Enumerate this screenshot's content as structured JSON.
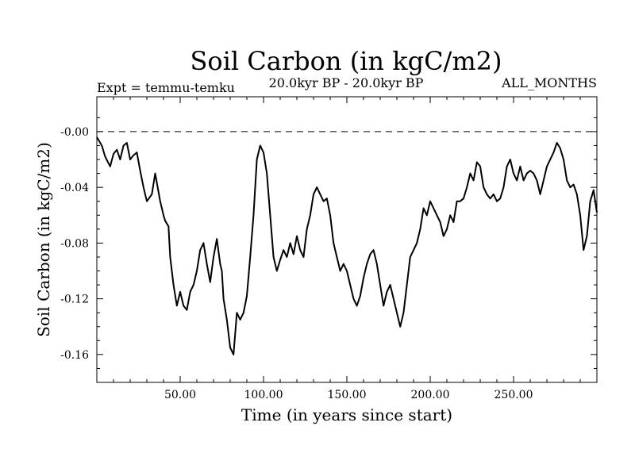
{
  "chart_data": {
    "type": "line",
    "title": "Soil Carbon (in kgC/m2)",
    "subtitle_left": "Expt = temmu-temku",
    "subtitle_center": "20.0kyr BP - 20.0kyr BP",
    "subtitle_right": "ALL_MONTHS",
    "xlabel": "Time (in years since start)",
    "ylabel": "Soil Carbon (in kgC/m2)",
    "xlim": [
      0,
      300
    ],
    "ylim": [
      -0.18,
      0.025
    ],
    "x_ticks": [
      50,
      100,
      150,
      200,
      250
    ],
    "x_tick_labels": [
      "50.00",
      "100.00",
      "150.00",
      "200.00",
      "250.00"
    ],
    "y_ticks": [
      0.0,
      -0.04,
      -0.08,
      -0.12,
      -0.16
    ],
    "y_tick_labels": [
      "-0.00",
      "-0.04",
      "-0.08",
      "-0.12",
      "-0.16"
    ],
    "reference_line": 0.0,
    "grid": false,
    "series": [
      {
        "name": "Soil Carbon",
        "x": [
          0,
          3,
          5,
          8,
          10,
          12,
          14,
          16,
          18,
          20,
          22,
          24,
          26,
          28,
          30,
          33,
          35,
          38,
          40,
          41,
          43,
          44,
          46,
          48,
          50,
          52,
          54,
          56,
          58,
          60,
          62,
          64,
          66,
          68,
          70,
          72,
          74,
          75,
          76,
          78,
          80,
          82,
          84,
          86,
          88,
          90,
          92,
          94,
          95,
          96,
          98,
          100,
          102,
          104,
          106,
          108,
          110,
          112,
          114,
          116,
          118,
          120,
          122,
          124,
          126,
          128,
          130,
          132,
          134,
          136,
          138,
          140,
          142,
          144,
          146,
          148,
          150,
          152,
          154,
          156,
          158,
          160,
          162,
          164,
          166,
          168,
          170,
          172,
          174,
          176,
          178,
          180,
          182,
          184,
          186,
          188,
          190,
          192,
          194,
          196,
          198,
          200,
          202,
          204,
          206,
          208,
          210,
          212,
          214,
          216,
          218,
          220,
          222,
          224,
          226,
          228,
          230,
          232,
          234,
          236,
          238,
          240,
          242,
          244,
          246,
          248,
          250,
          252,
          254,
          256,
          258,
          260,
          262,
          264,
          266,
          268,
          270,
          272,
          274,
          276,
          278,
          280,
          282,
          284,
          286,
          288,
          290,
          292,
          294,
          296,
          298,
          300
        ],
        "y": [
          -0.004,
          -0.01,
          -0.018,
          -0.025,
          -0.016,
          -0.013,
          -0.02,
          -0.01,
          -0.008,
          -0.02,
          -0.017,
          -0.015,
          -0.028,
          -0.04,
          -0.05,
          -0.045,
          -0.03,
          -0.05,
          -0.06,
          -0.064,
          -0.068,
          -0.09,
          -0.11,
          -0.125,
          -0.115,
          -0.125,
          -0.128,
          -0.115,
          -0.11,
          -0.1,
          -0.085,
          -0.08,
          -0.095,
          -0.108,
          -0.09,
          -0.077,
          -0.095,
          -0.1,
          -0.12,
          -0.135,
          -0.155,
          -0.16,
          -0.13,
          -0.135,
          -0.13,
          -0.118,
          -0.09,
          -0.06,
          -0.04,
          -0.02,
          -0.01,
          -0.015,
          -0.03,
          -0.06,
          -0.09,
          -0.1,
          -0.092,
          -0.085,
          -0.09,
          -0.08,
          -0.088,
          -0.075,
          -0.085,
          -0.09,
          -0.07,
          -0.06,
          -0.045,
          -0.04,
          -0.045,
          -0.05,
          -0.048,
          -0.06,
          -0.08,
          -0.09,
          -0.1,
          -0.095,
          -0.1,
          -0.11,
          -0.12,
          -0.125,
          -0.118,
          -0.105,
          -0.095,
          -0.088,
          -0.085,
          -0.095,
          -0.11,
          -0.125,
          -0.115,
          -0.11,
          -0.12,
          -0.13,
          -0.14,
          -0.13,
          -0.11,
          -0.09,
          -0.085,
          -0.08,
          -0.07,
          -0.055,
          -0.06,
          -0.05,
          -0.055,
          -0.06,
          -0.065,
          -0.075,
          -0.07,
          -0.06,
          -0.065,
          -0.05,
          -0.05,
          -0.048,
          -0.04,
          -0.03,
          -0.035,
          -0.022,
          -0.025,
          -0.04,
          -0.045,
          -0.048,
          -0.045,
          -0.05,
          -0.048,
          -0.04,
          -0.025,
          -0.02,
          -0.03,
          -0.035,
          -0.025,
          -0.035,
          -0.03,
          -0.028,
          -0.03,
          -0.035,
          -0.045,
          -0.035,
          -0.025,
          -0.02,
          -0.015,
          -0.008,
          -0.012,
          -0.02,
          -0.035,
          -0.04,
          -0.038,
          -0.045,
          -0.06,
          -0.085,
          -0.075,
          -0.05,
          -0.042,
          -0.058
        ]
      }
    ]
  }
}
